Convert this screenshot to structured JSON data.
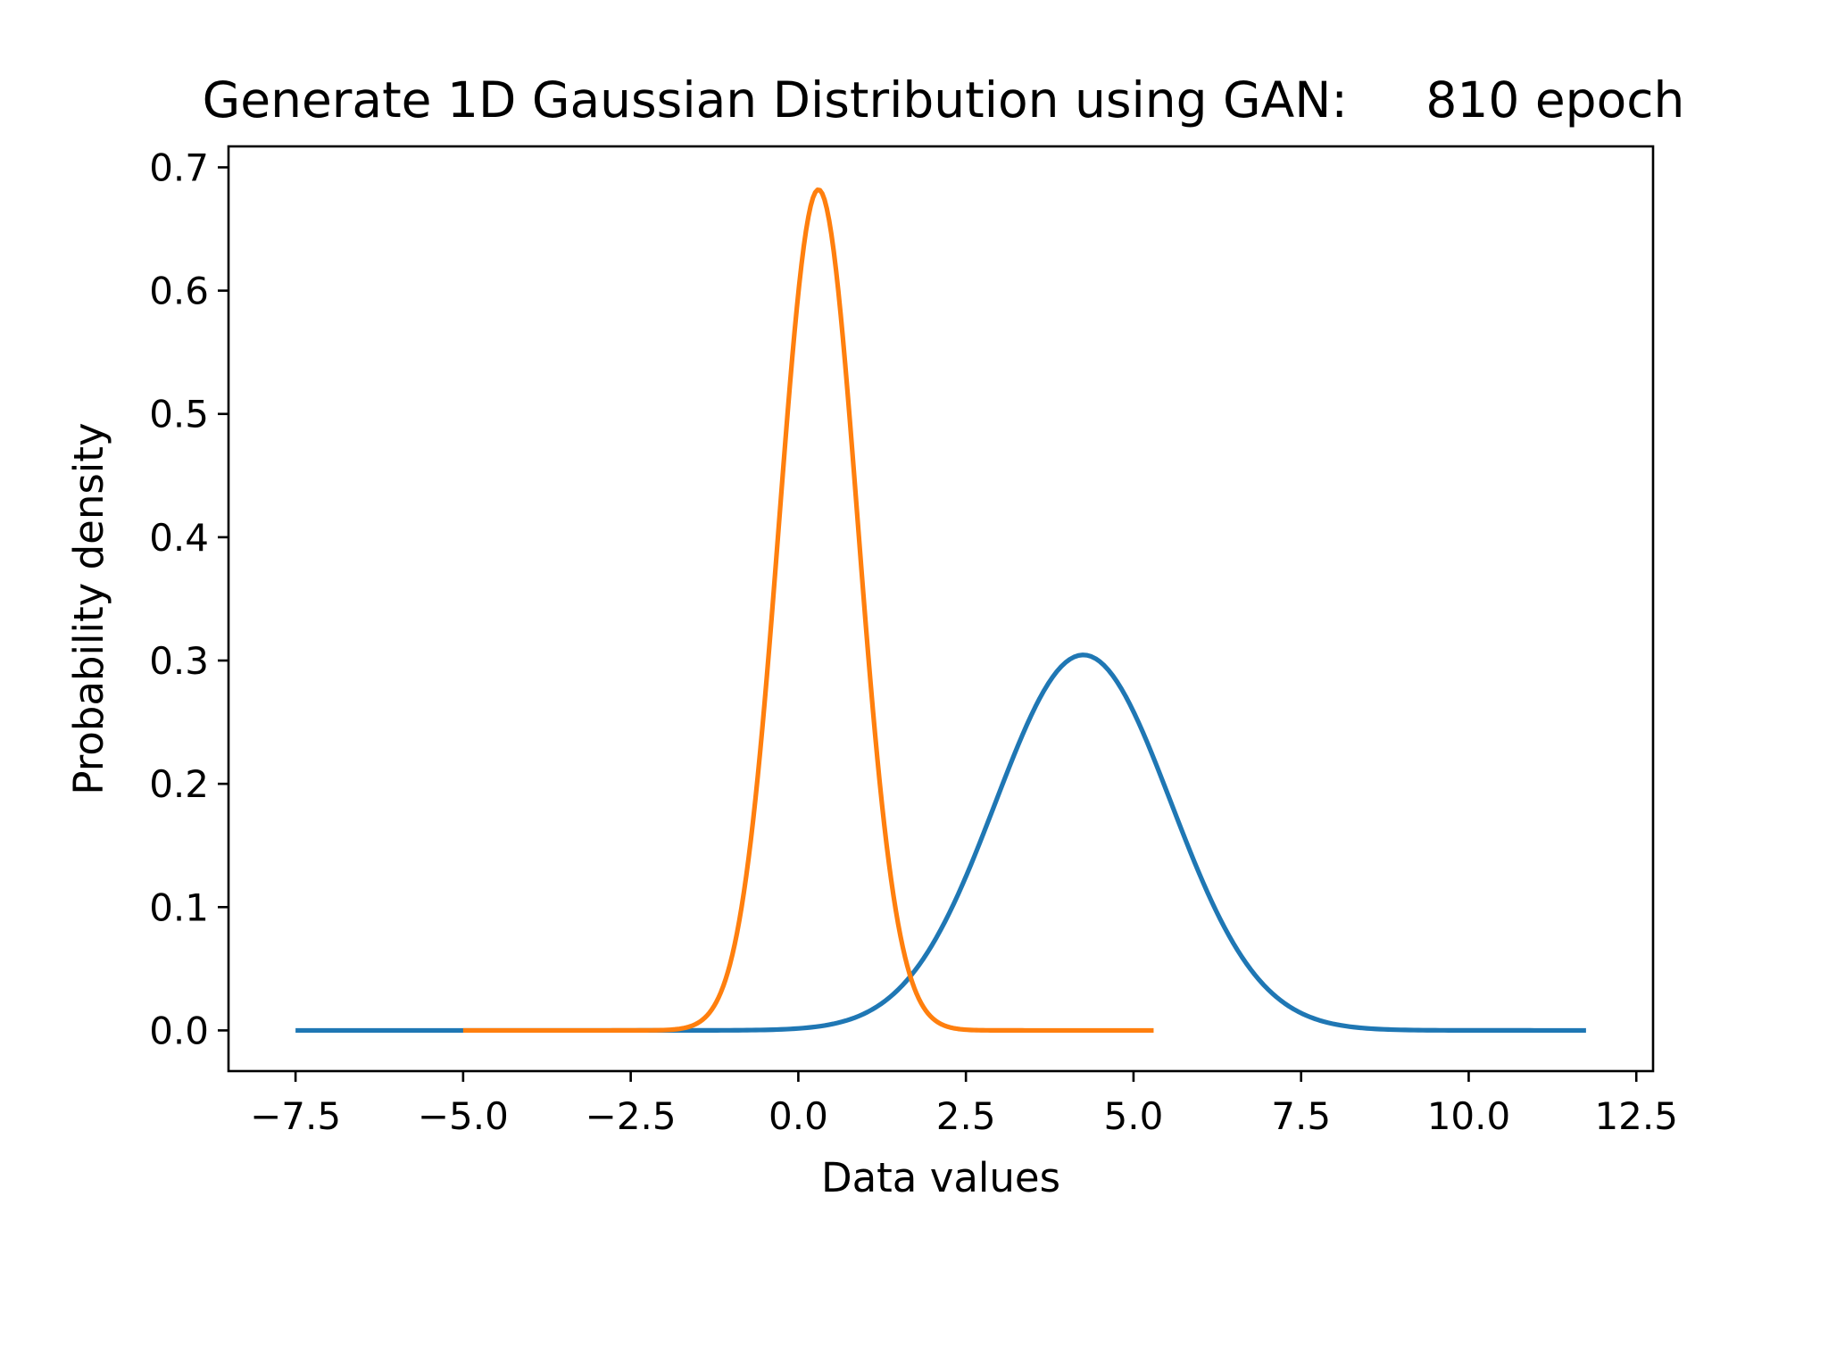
{
  "chart_data": {
    "type": "line",
    "title": "Generate 1D Gaussian Distribution using GAN:     810 epoch",
    "xlabel": "Data values",
    "ylabel": "Probability density",
    "xlim": [
      -8.5,
      12.75
    ],
    "ylim": [
      -0.033,
      0.717
    ],
    "grid": false,
    "legend": "none",
    "xticks": [
      -7.5,
      -5.0,
      -2.5,
      0.0,
      2.5,
      5.0,
      7.5,
      10.0,
      12.5
    ],
    "xtick_labels": [
      "−7.5",
      "−5.0",
      "−2.5",
      "0.0",
      "2.5",
      "5.0",
      "7.5",
      "10.0",
      "12.5"
    ],
    "yticks": [
      0.0,
      0.1,
      0.2,
      0.3,
      0.4,
      0.5,
      0.6,
      0.7
    ],
    "ytick_labels": [
      "0.0",
      "0.1",
      "0.2",
      "0.3",
      "0.4",
      "0.5",
      "0.6",
      "0.7"
    ],
    "series": [
      {
        "color": "#1f77b4",
        "distribution": "gaussian",
        "mean": 4.25,
        "std": 1.31,
        "x_range": [
          -7.5,
          11.75
        ]
      },
      {
        "color": "#ff7f0e",
        "distribution": "gaussian",
        "mean": 0.3,
        "std": 0.585,
        "x_range": [
          -5.0,
          5.3
        ]
      }
    ]
  }
}
